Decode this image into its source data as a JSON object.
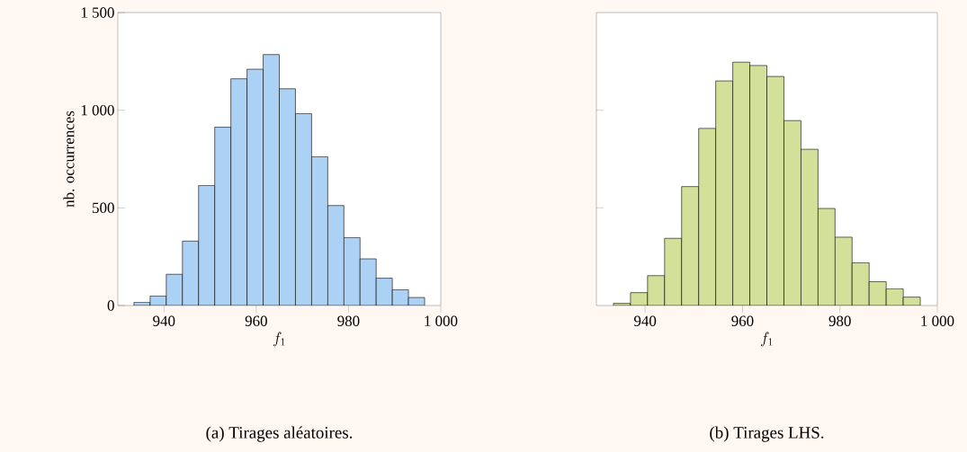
{
  "chart_data": [
    {
      "type": "histogram",
      "title": "(a) Tirages aléatoires.",
      "xlabel": "f_{1}",
      "ylabel": "nb. occurrences",
      "color": "#abd1f5",
      "bins": [
        933.5,
        937,
        940.5,
        944,
        947.5,
        951,
        954.5,
        958,
        961.5,
        965,
        968.5,
        972,
        975.5,
        979,
        982.5,
        986,
        989.5,
        993,
        996.5
      ],
      "values": [
        17,
        49,
        160,
        330,
        615,
        913,
        1161,
        1210,
        1285,
        1110,
        983,
        762,
        512,
        348,
        239,
        140,
        81,
        41
      ],
      "xlim": [
        930,
        1000
      ],
      "ylim": [
        0,
        1500
      ],
      "xticks": [
        940,
        960,
        980,
        {
          "value": 1000,
          "label": "1 000"
        }
      ],
      "yticks": [
        0,
        500,
        {
          "value": 1000,
          "label": "1 000"
        },
        {
          "value": 1500,
          "label": "1 500"
        }
      ]
    },
    {
      "type": "histogram",
      "title": "(b) Tirages LHS.",
      "xlabel": "f_{1}",
      "color": "#d2e09a",
      "bins": [
        933.5,
        937,
        940.5,
        944,
        947.5,
        951,
        954.5,
        958,
        961.5,
        965,
        968.5,
        972,
        975.5,
        979,
        982.5,
        986,
        989.5,
        993,
        996.5
      ],
      "values": [
        11,
        66,
        153,
        344,
        609,
        907,
        1150,
        1246,
        1229,
        1173,
        947,
        800,
        497,
        350,
        219,
        122,
        86,
        43
      ],
      "xlim": [
        930,
        1000
      ],
      "ylim": [
        0,
        1500
      ],
      "xticks": [
        940,
        960,
        980,
        {
          "value": 1000,
          "label": "1 000"
        }
      ],
      "yticks": [
        {
          "value": 500,
          "label": null
        },
        {
          "value": 1000,
          "label": null
        }
      ],
      "tick_labels": "x"
    }
  ]
}
